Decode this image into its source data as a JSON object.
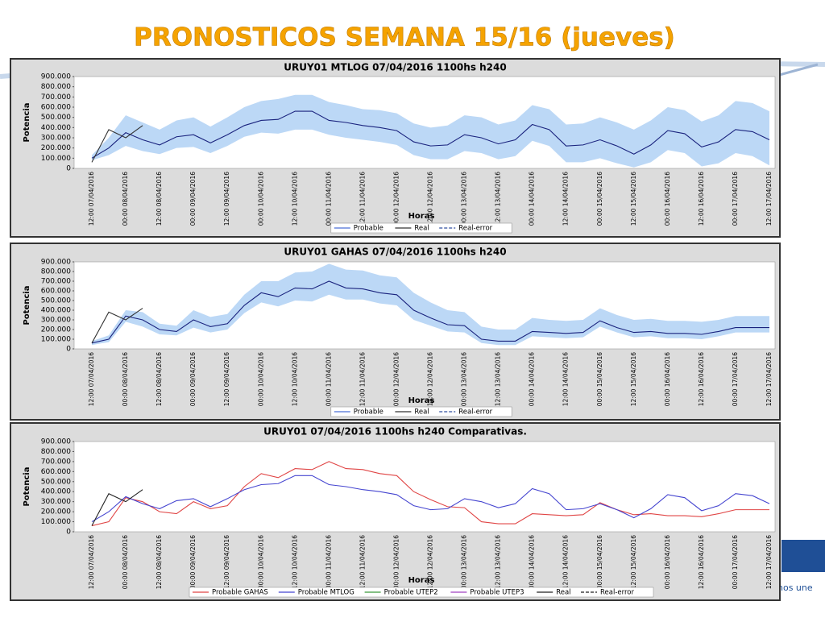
{
  "title": "PRONOSTICOS SEMANA 15/16 (jueves)",
  "footer": "nos une",
  "chart_data": [
    {
      "type": "line",
      "title": "URUY01  MTLOG  07/04/2016  1100hs   h240",
      "x_label": "Horas",
      "y_label": "Potencia",
      "categories": [
        "12:00 07/04/2016",
        null,
        "00:00 08/04/2016",
        null,
        "12:00 08/04/2016",
        null,
        "00:00 09/04/2016",
        null,
        "12:00 09/04/2016",
        null,
        "00:00 10/04/2016",
        null,
        "12:00 10/04/2016",
        null,
        "00:00 11/04/2016",
        null,
        "12:00 11/04/2016",
        null,
        "00:00 12/04/2016",
        null,
        "12:00 12/04/2016",
        null,
        "00:00 13/04/2016",
        null,
        "12:00 13/04/2016",
        null,
        "00:00 14/04/2016",
        null,
        "12:00 14/04/2016",
        null,
        "00:00 15/04/2016",
        null,
        "12:00 15/04/2016",
        null,
        "00:00 16/04/2016",
        null,
        "12:00 16/04/2016",
        null,
        "00:00 17/04/2016",
        null,
        "12:00 17/04/2016"
      ],
      "ylim": [
        0,
        900000
      ],
      "yticks": [
        0,
        {
          "value": 100000,
          "label": "100.000"
        },
        {
          "value": 200000,
          "label": "200.000"
        },
        {
          "value": 300000,
          "label": "300.000"
        },
        {
          "value": 400000,
          "label": "400.000"
        },
        {
          "value": 500000,
          "label": "500.000"
        },
        {
          "value": 600000,
          "label": "600.000"
        },
        {
          "value": 700000,
          "label": "700.000"
        },
        {
          "value": 800000,
          "label": "800.000"
        },
        {
          "value": 900000,
          "label": "900.000"
        }
      ],
      "band": {
        "color": "#bcd8f6",
        "upper": [
          130000,
          300000,
          520000,
          450000,
          380000,
          470000,
          500000,
          410000,
          500000,
          600000,
          660000,
          680000,
          720000,
          720000,
          650000,
          620000,
          580000,
          570000,
          540000,
          440000,
          400000,
          420000,
          520000,
          500000,
          430000,
          470000,
          620000,
          580000,
          430000,
          440000,
          500000,
          450000,
          380000,
          470000,
          600000,
          570000,
          460000,
          520000,
          660000,
          640000,
          560000
        ],
        "lower": [
          80000,
          130000,
          220000,
          170000,
          140000,
          200000,
          210000,
          150000,
          220000,
          310000,
          350000,
          340000,
          380000,
          380000,
          330000,
          300000,
          280000,
          260000,
          230000,
          130000,
          90000,
          90000,
          170000,
          150000,
          90000,
          120000,
          270000,
          220000,
          60000,
          60000,
          100000,
          50000,
          10000,
          60000,
          180000,
          150000,
          20000,
          50000,
          150000,
          120000,
          30000
        ]
      },
      "series": [
        {
          "name": "Probable",
          "color": "#1a237e",
          "values": [
            100000,
            200000,
            350000,
            280000,
            230000,
            310000,
            330000,
            250000,
            330000,
            420000,
            470000,
            480000,
            560000,
            560000,
            470000,
            450000,
            420000,
            400000,
            370000,
            260000,
            220000,
            230000,
            330000,
            300000,
            240000,
            280000,
            430000,
            380000,
            220000,
            230000,
            280000,
            220000,
            140000,
            230000,
            370000,
            340000,
            210000,
            260000,
            380000,
            360000,
            280000
          ]
        },
        {
          "name": "Real",
          "color": "#333333",
          "values": [
            60000,
            380000,
            300000,
            420000,
            null,
            null,
            null,
            null,
            null,
            null,
            null,
            null,
            null,
            null,
            null,
            null,
            null,
            null,
            null,
            null,
            null,
            null,
            null,
            null,
            null,
            null,
            null,
            null,
            null,
            null,
            null,
            null,
            null,
            null,
            null,
            null,
            null,
            null,
            null,
            null,
            null
          ]
        }
      ],
      "extra_legend": [
        {
          "name": "Real-error",
          "color": "#3050a0",
          "dash": true
        }
      ],
      "legend_fill": "#4a6fd8"
    },
    {
      "type": "line",
      "title": "URUY01  GAHAS  07/04/2016  1100hs   h240",
      "x_label": "Horas",
      "y_label": "Potencia",
      "categories": [
        "12:00 07/04/2016",
        null,
        "00:00 08/04/2016",
        null,
        "12:00 08/04/2016",
        null,
        "00:00 09/04/2016",
        null,
        "12:00 09/04/2016",
        null,
        "00:00 10/04/2016",
        null,
        "12:00 10/04/2016",
        null,
        "00:00 11/04/2016",
        null,
        "12:00 11/04/2016",
        null,
        "00:00 12/04/2016",
        null,
        "12:00 12/04/2016",
        null,
        "00:00 13/04/2016",
        null,
        "12:00 13/04/2016",
        null,
        "00:00 14/04/2016",
        null,
        "12:00 14/04/2016",
        null,
        "00:00 15/04/2016",
        null,
        "12:00 15/04/2016",
        null,
        "00:00 16/04/2016",
        null,
        "12:00 16/04/2016",
        null,
        "00:00 17/04/2016",
        null,
        "12:00 17/04/2016"
      ],
      "ylim": [
        0,
        900000
      ],
      "yticks": [
        0,
        {
          "value": 100000,
          "label": "100.000"
        },
        {
          "value": 200000,
          "label": "200.000"
        },
        {
          "value": 300000,
          "label": "300.000"
        },
        {
          "value": 400000,
          "label": "400.000"
        },
        {
          "value": 500000,
          "label": "500.000"
        },
        {
          "value": 600000,
          "label": "600.000"
        },
        {
          "value": 700000,
          "label": "700.000"
        },
        {
          "value": 800000,
          "label": "800.000"
        },
        {
          "value": 900000,
          "label": "900.000"
        }
      ],
      "band": {
        "color": "#bcd8f6",
        "upper": [
          80000,
          140000,
          400000,
          380000,
          260000,
          240000,
          400000,
          330000,
          360000,
          560000,
          700000,
          700000,
          790000,
          800000,
          880000,
          820000,
          810000,
          760000,
          740000,
          580000,
          480000,
          400000,
          380000,
          230000,
          200000,
          200000,
          320000,
          300000,
          290000,
          300000,
          420000,
          350000,
          300000,
          310000,
          290000,
          290000,
          280000,
          300000,
          340000,
          340000,
          340000
        ],
        "lower": [
          40000,
          70000,
          280000,
          230000,
          150000,
          140000,
          220000,
          170000,
          200000,
          370000,
          480000,
          440000,
          500000,
          490000,
          560000,
          510000,
          510000,
          470000,
          450000,
          300000,
          240000,
          180000,
          170000,
          60000,
          40000,
          40000,
          130000,
          120000,
          110000,
          120000,
          230000,
          170000,
          120000,
          130000,
          110000,
          110000,
          100000,
          130000,
          170000,
          170000,
          170000
        ]
      },
      "series": [
        {
          "name": "Probable",
          "color": "#1a237e",
          "values": [
            60000,
            100000,
            340000,
            300000,
            200000,
            180000,
            300000,
            230000,
            260000,
            450000,
            580000,
            540000,
            630000,
            620000,
            700000,
            630000,
            620000,
            580000,
            560000,
            400000,
            320000,
            250000,
            240000,
            100000,
            80000,
            80000,
            180000,
            170000,
            160000,
            170000,
            290000,
            220000,
            170000,
            180000,
            160000,
            160000,
            150000,
            180000,
            220000,
            220000,
            220000
          ]
        },
        {
          "name": "Real",
          "color": "#333333",
          "values": [
            60000,
            380000,
            300000,
            420000,
            null,
            null,
            null,
            null,
            null,
            null,
            null,
            null,
            null,
            null,
            null,
            null,
            null,
            null,
            null,
            null,
            null,
            null,
            null,
            null,
            null,
            null,
            null,
            null,
            null,
            null,
            null,
            null,
            null,
            null,
            null,
            null,
            null,
            null,
            null,
            null,
            null
          ]
        }
      ],
      "extra_legend": [
        {
          "name": "Real-error",
          "color": "#3050a0",
          "dash": true
        }
      ],
      "legend_fill": "#4a6fd8"
    },
    {
      "type": "line",
      "title": "URUY01  07/04/2016  1100hs   h240  Comparativas.",
      "x_label": "Horas",
      "y_label": "Potencia",
      "categories": [
        "12:00 07/04/2016",
        null,
        "00:00 08/04/2016",
        null,
        "12:00 08/04/2016",
        null,
        "00:00 09/04/2016",
        null,
        "12:00 09/04/2016",
        null,
        "00:00 10/04/2016",
        null,
        "12:00 10/04/2016",
        null,
        "00:00 11/04/2016",
        null,
        "12:00 11/04/2016",
        null,
        "00:00 12/04/2016",
        null,
        "12:00 12/04/2016",
        null,
        "00:00 13/04/2016",
        null,
        "12:00 13/04/2016",
        null,
        "00:00 14/04/2016",
        null,
        "12:00 14/04/2016",
        null,
        "00:00 15/04/2016",
        null,
        "12:00 15/04/2016",
        null,
        "00:00 16/04/2016",
        null,
        "12:00 16/04/2016",
        null,
        "00:00 17/04/2016",
        null,
        "12:00 17/04/2016"
      ],
      "ylim": [
        0,
        900000
      ],
      "yticks": [
        0,
        {
          "value": 100000,
          "label": "100.000"
        },
        {
          "value": 200000,
          "label": "200.000"
        },
        {
          "value": 300000,
          "label": "300.000"
        },
        {
          "value": 400000,
          "label": "400.000"
        },
        {
          "value": 500000,
          "label": "500.000"
        },
        {
          "value": 600000,
          "label": "600.000"
        },
        {
          "value": 700000,
          "label": "700.000"
        },
        {
          "value": 800000,
          "label": "800.000"
        },
        {
          "value": 900000,
          "label": "900.000"
        }
      ],
      "series": [
        {
          "name": "Probable GAHAS",
          "color": "#e04545",
          "values": [
            60000,
            100000,
            340000,
            300000,
            200000,
            180000,
            300000,
            230000,
            260000,
            450000,
            580000,
            540000,
            630000,
            620000,
            700000,
            630000,
            620000,
            580000,
            560000,
            400000,
            320000,
            250000,
            240000,
            100000,
            80000,
            80000,
            180000,
            170000,
            160000,
            170000,
            290000,
            220000,
            170000,
            180000,
            160000,
            160000,
            150000,
            180000,
            220000,
            220000,
            220000
          ]
        },
        {
          "name": "Probable MTLOG",
          "color": "#4545d0",
          "values": [
            100000,
            200000,
            350000,
            280000,
            230000,
            310000,
            330000,
            250000,
            330000,
            420000,
            470000,
            480000,
            560000,
            560000,
            470000,
            450000,
            420000,
            400000,
            370000,
            260000,
            220000,
            230000,
            330000,
            300000,
            240000,
            280000,
            430000,
            380000,
            220000,
            230000,
            280000,
            220000,
            140000,
            230000,
            370000,
            340000,
            210000,
            260000,
            380000,
            360000,
            280000
          ]
        },
        {
          "name": "Probable UTEP2",
          "color": "#3a9a3a",
          "values": [
            null,
            null,
            null,
            null,
            null,
            null,
            null,
            null,
            null,
            null,
            null,
            null,
            null,
            null,
            null,
            null,
            null,
            null,
            null,
            null,
            null,
            null,
            null,
            null,
            null,
            null,
            null,
            null,
            null,
            null,
            null,
            null,
            null,
            null,
            null,
            null,
            null,
            null,
            null,
            null,
            null
          ]
        },
        {
          "name": "Probable UTEP3",
          "color": "#a040c0",
          "values": [
            null,
            null,
            null,
            null,
            null,
            null,
            null,
            null,
            null,
            null,
            null,
            null,
            null,
            null,
            null,
            null,
            null,
            null,
            null,
            null,
            null,
            null,
            null,
            null,
            null,
            null,
            null,
            null,
            null,
            null,
            null,
            null,
            null,
            null,
            null,
            null,
            null,
            null,
            null,
            null,
            null
          ]
        },
        {
          "name": "Real",
          "color": "#222222",
          "values": [
            60000,
            380000,
            300000,
            420000,
            null,
            null,
            null,
            null,
            null,
            null,
            null,
            null,
            null,
            null,
            null,
            null,
            null,
            null,
            null,
            null,
            null,
            null,
            null,
            null,
            null,
            null,
            null,
            null,
            null,
            null,
            null,
            null,
            null,
            null,
            null,
            null,
            null,
            null,
            null,
            null,
            null
          ]
        }
      ],
      "extra_legend": [
        {
          "name": "Real-error",
          "color": "#222222",
          "dash": true
        }
      ]
    }
  ]
}
